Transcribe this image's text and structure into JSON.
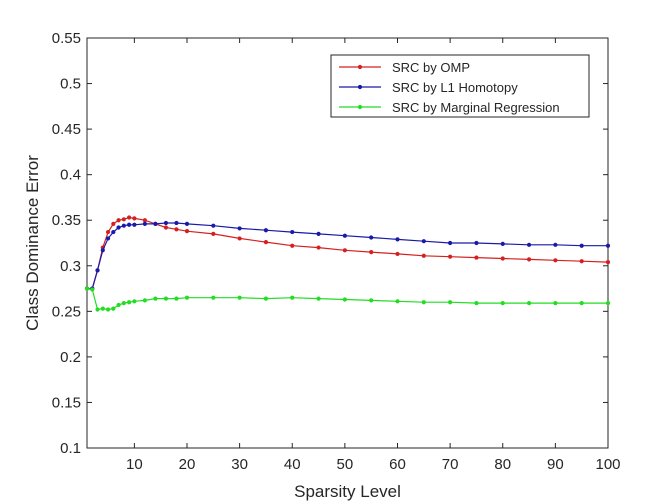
{
  "chart_data": {
    "type": "line",
    "title": "",
    "xlabel": "Sparsity Level",
    "ylabel": "Class Dominance Error",
    "xlim": [
      1,
      100
    ],
    "ylim": [
      0.1,
      0.55
    ],
    "xticks": [
      10,
      20,
      30,
      40,
      50,
      60,
      70,
      80,
      90,
      100
    ],
    "yticks": [
      0.1,
      0.15,
      0.2,
      0.25,
      0.3,
      0.35,
      0.4,
      0.45,
      0.5,
      0.55
    ],
    "xtick_labels": [
      "10",
      "20",
      "30",
      "40",
      "50",
      "60",
      "70",
      "80",
      "90",
      "100"
    ],
    "ytick_labels": [
      "0.1",
      "0.15",
      "0.2",
      "0.25",
      "0.3",
      "0.35",
      "0.4",
      "0.45",
      "0.5",
      "0.55"
    ],
    "grid": false,
    "legend_position": "top-right",
    "series": [
      {
        "name": "SRC by OMP",
        "color": "#d62020",
        "marker": "dot",
        "x": [
          1,
          2,
          3,
          4,
          5,
          6,
          7,
          8,
          9,
          10,
          12,
          14,
          16,
          18,
          20,
          25,
          30,
          35,
          40,
          45,
          50,
          55,
          60,
          65,
          70,
          75,
          80,
          85,
          90,
          95,
          100
        ],
        "y": [
          0.275,
          0.275,
          0.295,
          0.32,
          0.337,
          0.346,
          0.35,
          0.351,
          0.353,
          0.352,
          0.35,
          0.346,
          0.342,
          0.34,
          0.338,
          0.335,
          0.33,
          0.326,
          0.322,
          0.32,
          0.317,
          0.315,
          0.313,
          0.311,
          0.31,
          0.309,
          0.308,
          0.307,
          0.306,
          0.305,
          0.304
        ]
      },
      {
        "name": "SRC by L1 Homotopy",
        "color": "#1a1aa8",
        "marker": "dot",
        "x": [
          1,
          2,
          3,
          4,
          5,
          6,
          7,
          8,
          9,
          10,
          12,
          14,
          16,
          18,
          20,
          25,
          30,
          35,
          40,
          45,
          50,
          55,
          60,
          65,
          70,
          75,
          80,
          85,
          90,
          95,
          100
        ],
        "y": [
          0.275,
          0.275,
          0.295,
          0.317,
          0.33,
          0.337,
          0.342,
          0.344,
          0.345,
          0.345,
          0.346,
          0.346,
          0.347,
          0.347,
          0.346,
          0.344,
          0.341,
          0.339,
          0.337,
          0.335,
          0.333,
          0.331,
          0.329,
          0.327,
          0.325,
          0.325,
          0.324,
          0.323,
          0.323,
          0.322,
          0.322
        ]
      },
      {
        "name": "SRC by Marginal Regression",
        "color": "#22dd22",
        "marker": "dot",
        "x": [
          1,
          2,
          3,
          4,
          5,
          6,
          7,
          8,
          9,
          10,
          12,
          14,
          16,
          18,
          20,
          25,
          30,
          35,
          40,
          45,
          50,
          55,
          60,
          65,
          70,
          75,
          80,
          85,
          90,
          95,
          100
        ],
        "y": [
          0.275,
          0.274,
          0.252,
          0.253,
          0.252,
          0.253,
          0.257,
          0.259,
          0.26,
          0.261,
          0.262,
          0.264,
          0.264,
          0.264,
          0.265,
          0.265,
          0.265,
          0.264,
          0.265,
          0.264,
          0.263,
          0.262,
          0.261,
          0.26,
          0.26,
          0.259,
          0.259,
          0.259,
          0.259,
          0.259,
          0.259
        ]
      }
    ]
  }
}
